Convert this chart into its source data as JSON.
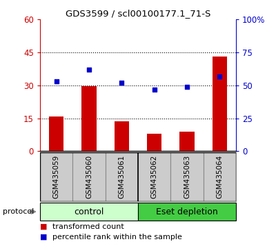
{
  "title": "GDS3599 / scl00100177.1_71-S",
  "samples": [
    "GSM435059",
    "GSM435060",
    "GSM435061",
    "GSM435062",
    "GSM435063",
    "GSM435064"
  ],
  "transformed_count": [
    16.0,
    29.5,
    13.5,
    8.0,
    9.0,
    43.0
  ],
  "percentile_rank": [
    53,
    62,
    52,
    47,
    49,
    57
  ],
  "left_ylim": [
    0,
    60
  ],
  "right_ylim": [
    0,
    100
  ],
  "left_yticks": [
    0,
    15,
    30,
    45,
    60
  ],
  "right_yticks": [
    0,
    25,
    50,
    75,
    100
  ],
  "right_yticklabels": [
    "0",
    "25",
    "50",
    "75",
    "100%"
  ],
  "bar_color": "#cc0000",
  "scatter_color": "#0000cc",
  "group1_label": "control",
  "group2_label": "Eset depletion",
  "group1_bg": "#ccffcc",
  "group2_bg": "#44cc44",
  "protocol_label": "protocol",
  "legend_bar_label": "transformed count",
  "legend_scatter_label": "percentile rank within the sample",
  "dotted_yticks": [
    15,
    30,
    45
  ],
  "bar_width": 0.45,
  "tick_label_bg": "#cccccc",
  "tick_border": "#888888"
}
